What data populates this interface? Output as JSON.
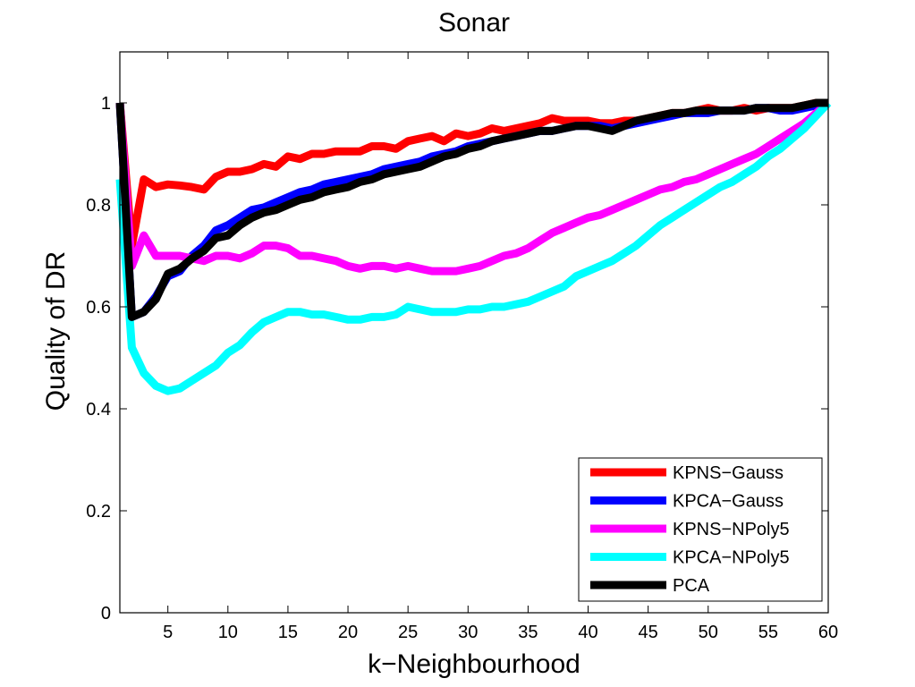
{
  "chart_data": {
    "type": "line",
    "title": "Sonar",
    "xlabel": "k−Neighbourhood",
    "ylabel": "Quality of DR",
    "xlim": [
      1,
      60
    ],
    "ylim": [
      0,
      1.1
    ],
    "xticks": [
      "5",
      "10",
      "15",
      "20",
      "25",
      "30",
      "35",
      "40",
      "45",
      "50",
      "55",
      "60"
    ],
    "xtick_values": [
      5,
      10,
      15,
      20,
      25,
      30,
      35,
      40,
      45,
      50,
      55,
      60
    ],
    "yticks": [
      "0",
      "0.2",
      "0.4",
      "0.6",
      "0.8",
      "1"
    ],
    "ytick_values": [
      0,
      0.2,
      0.4,
      0.6,
      0.8,
      1
    ],
    "grid": false,
    "legend_position": "bottom-right",
    "x": [
      1,
      2,
      3,
      4,
      5,
      6,
      7,
      8,
      9,
      10,
      11,
      12,
      13,
      14,
      15,
      16,
      17,
      18,
      19,
      20,
      21,
      22,
      23,
      24,
      25,
      26,
      27,
      28,
      29,
      30,
      31,
      32,
      33,
      34,
      35,
      36,
      37,
      38,
      39,
      40,
      41,
      42,
      43,
      44,
      45,
      46,
      47,
      48,
      49,
      50,
      51,
      52,
      53,
      54,
      55,
      56,
      57,
      58,
      59,
      60
    ],
    "series": [
      {
        "name": "KPNS−Gauss",
        "color": "#ff0000",
        "values": [
          1.0,
          0.72,
          0.85,
          0.835,
          0.84,
          0.838,
          0.835,
          0.83,
          0.855,
          0.865,
          0.865,
          0.87,
          0.88,
          0.875,
          0.895,
          0.89,
          0.9,
          0.9,
          0.905,
          0.905,
          0.905,
          0.915,
          0.915,
          0.91,
          0.925,
          0.93,
          0.935,
          0.925,
          0.94,
          0.935,
          0.94,
          0.95,
          0.945,
          0.95,
          0.955,
          0.96,
          0.97,
          0.965,
          0.965,
          0.965,
          0.96,
          0.96,
          0.965,
          0.965,
          0.97,
          0.975,
          0.98,
          0.98,
          0.985,
          0.99,
          0.985,
          0.985,
          0.99,
          0.985,
          0.99,
          0.99,
          0.99,
          0.995,
          1.0,
          1.0
        ]
      },
      {
        "name": "KPCA−Gauss",
        "color": "#0000ff",
        "values": [
          1.0,
          0.58,
          0.59,
          0.62,
          0.66,
          0.67,
          0.7,
          0.72,
          0.75,
          0.76,
          0.775,
          0.79,
          0.795,
          0.805,
          0.815,
          0.825,
          0.83,
          0.84,
          0.845,
          0.85,
          0.855,
          0.86,
          0.87,
          0.875,
          0.88,
          0.885,
          0.895,
          0.9,
          0.905,
          0.915,
          0.92,
          0.925,
          0.93,
          0.935,
          0.94,
          0.945,
          0.945,
          0.95,
          0.955,
          0.955,
          0.955,
          0.95,
          0.955,
          0.96,
          0.965,
          0.97,
          0.975,
          0.98,
          0.98,
          0.98,
          0.985,
          0.985,
          0.985,
          0.99,
          0.99,
          0.985,
          0.985,
          0.99,
          0.995,
          1.0
        ]
      },
      {
        "name": "KPNS−NPoly5",
        "color": "#ff00ff",
        "values": [
          1.0,
          0.68,
          0.74,
          0.7,
          0.7,
          0.7,
          0.695,
          0.69,
          0.7,
          0.7,
          0.695,
          0.705,
          0.72,
          0.72,
          0.715,
          0.7,
          0.7,
          0.695,
          0.69,
          0.68,
          0.675,
          0.68,
          0.68,
          0.675,
          0.68,
          0.675,
          0.67,
          0.67,
          0.67,
          0.675,
          0.68,
          0.69,
          0.7,
          0.705,
          0.715,
          0.73,
          0.745,
          0.755,
          0.765,
          0.775,
          0.78,
          0.79,
          0.8,
          0.81,
          0.82,
          0.83,
          0.835,
          0.845,
          0.85,
          0.86,
          0.87,
          0.88,
          0.89,
          0.9,
          0.915,
          0.93,
          0.945,
          0.96,
          0.98,
          1.0
        ]
      },
      {
        "name": "KPCA−NPoly5",
        "color": "#00ffff",
        "values": [
          0.85,
          0.52,
          0.47,
          0.445,
          0.435,
          0.44,
          0.455,
          0.47,
          0.485,
          0.51,
          0.525,
          0.55,
          0.57,
          0.58,
          0.59,
          0.59,
          0.585,
          0.585,
          0.58,
          0.575,
          0.575,
          0.58,
          0.58,
          0.585,
          0.6,
          0.595,
          0.59,
          0.59,
          0.59,
          0.595,
          0.595,
          0.6,
          0.6,
          0.605,
          0.61,
          0.62,
          0.63,
          0.64,
          0.66,
          0.67,
          0.68,
          0.69,
          0.705,
          0.72,
          0.74,
          0.76,
          0.775,
          0.79,
          0.805,
          0.82,
          0.835,
          0.845,
          0.86,
          0.875,
          0.895,
          0.91,
          0.93,
          0.95,
          0.975,
          1.0
        ]
      },
      {
        "name": "PCA",
        "color": "#000000",
        "values": [
          1.0,
          0.58,
          0.59,
          0.615,
          0.665,
          0.675,
          0.695,
          0.71,
          0.735,
          0.74,
          0.76,
          0.775,
          0.785,
          0.79,
          0.8,
          0.81,
          0.815,
          0.825,
          0.83,
          0.835,
          0.845,
          0.85,
          0.86,
          0.865,
          0.87,
          0.875,
          0.885,
          0.895,
          0.9,
          0.91,
          0.915,
          0.925,
          0.93,
          0.935,
          0.94,
          0.945,
          0.945,
          0.95,
          0.955,
          0.955,
          0.95,
          0.945,
          0.955,
          0.965,
          0.97,
          0.975,
          0.98,
          0.98,
          0.985,
          0.985,
          0.985,
          0.985,
          0.985,
          0.99,
          0.99,
          0.99,
          0.99,
          0.995,
          1.0,
          1.0
        ]
      }
    ]
  }
}
